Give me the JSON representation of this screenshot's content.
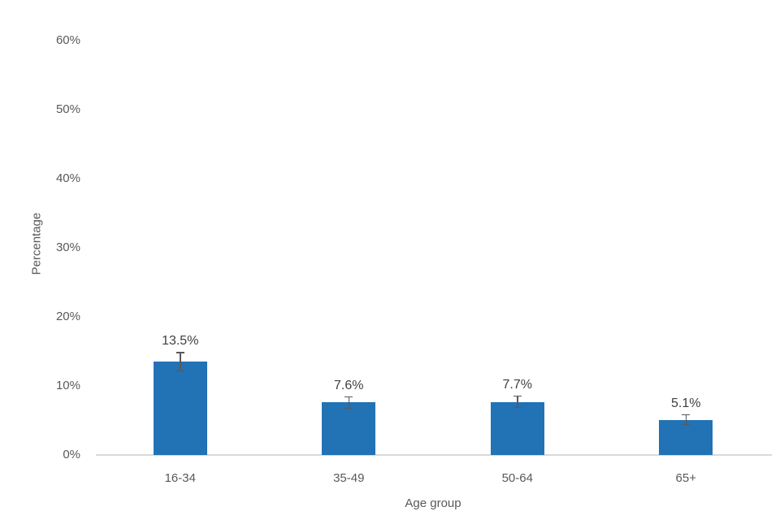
{
  "chart_data": {
    "type": "bar",
    "title": "",
    "xlabel": "Age group",
    "ylabel": "Percentage",
    "categories": [
      "16-34",
      "35-49",
      "50-64",
      "65+"
    ],
    "values": [
      13.5,
      7.6,
      7.7,
      5.1
    ],
    "data_labels": [
      "13.5%",
      "7.6%",
      "7.7%",
      "5.1%"
    ],
    "errors": [
      1.4,
      0.9,
      0.9,
      0.8
    ],
    "ylim": [
      0,
      60
    ],
    "yticks": [
      0,
      10,
      20,
      30,
      40,
      50,
      60
    ],
    "ytick_labels": [
      "0%",
      "10%",
      "20%",
      "30%",
      "40%",
      "50%",
      "60%"
    ],
    "grid": false,
    "legend": "none",
    "bar_color": "#2272B6",
    "error_bar_color": "#595959",
    "axis_line_color": "#d9d9d9",
    "text_color": "#595959",
    "data_label_color": "#3f3f3f",
    "background_color": "#ffffff"
  }
}
